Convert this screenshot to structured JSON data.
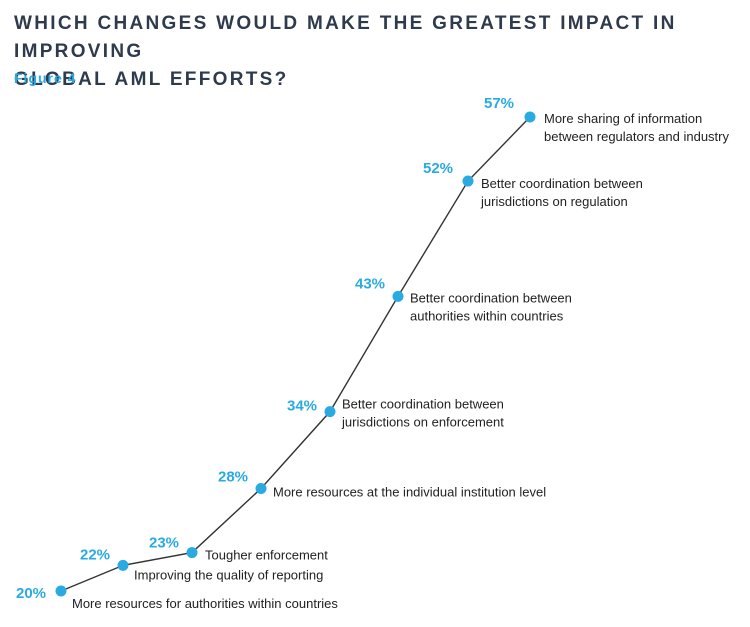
{
  "header": {
    "title_line1": "WHICH CHANGES WOULD MAKE THE GREATEST IMPACT IN IMPROVING",
    "title_line2": "GLOBAL AML EFFORTS?",
    "figure_label": "Figure 4"
  },
  "colors": {
    "accent": "#29abe2",
    "line": "#333333",
    "text": "#222222",
    "title": "#2f3b4c"
  },
  "chart_data": {
    "type": "line",
    "title": "WHICH CHANGES WOULD MAKE THE GREATEST IMPACT IN IMPROVING GLOBAL AML EFFORTS?",
    "xlabel": "",
    "ylabel": "",
    "grid": false,
    "points": [
      {
        "value": 20,
        "value_label": "20%",
        "label": [
          "More resources for authorities within countries"
        ]
      },
      {
        "value": 22,
        "value_label": "22%",
        "label": [
          "Improving the quality of reporting"
        ]
      },
      {
        "value": 23,
        "value_label": "23%",
        "label": [
          "Tougher enforcement"
        ]
      },
      {
        "value": 28,
        "value_label": "28%",
        "label": [
          "More resources at the individual institution level"
        ]
      },
      {
        "value": 34,
        "value_label": "34%",
        "label": [
          "Better coordination between",
          "jurisdictions on enforcement"
        ]
      },
      {
        "value": 43,
        "value_label": "43%",
        "label": [
          "Better coordination between",
          "authorities within countries"
        ]
      },
      {
        "value": 52,
        "value_label": "52%",
        "label": [
          "Better coordination between",
          "jurisdictions on regulation"
        ]
      },
      {
        "value": 57,
        "value_label": "57%",
        "label": [
          "More sharing of information",
          "between regulators and industry"
        ]
      }
    ]
  }
}
